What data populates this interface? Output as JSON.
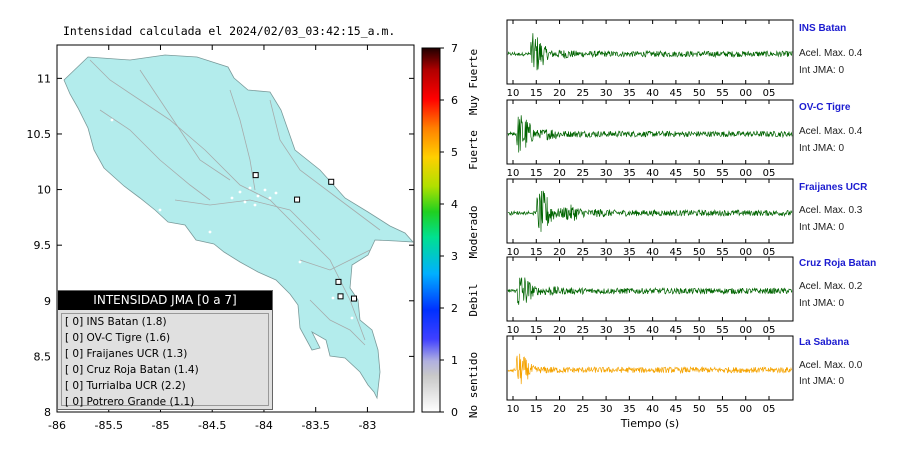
{
  "map": {
    "title": "Intensidad calculada el 2024/02/03_03:42:15_a.m.",
    "xticks": [
      "-86",
      "-85.5",
      "-85",
      "-84.5",
      "-84",
      "-83.5",
      "-83"
    ],
    "yticks": [
      "11",
      "10.5",
      "10",
      "9.5",
      "9",
      "8.5",
      "8"
    ],
    "xlim": [
      -86,
      -82.55
    ],
    "ylim": [
      8,
      11.3
    ],
    "land_color": "#b3ecec",
    "stations": [
      {
        "lon": -84.08,
        "lat": 10.13
      },
      {
        "lon": -83.35,
        "lat": 10.07
      },
      {
        "lon": -83.68,
        "lat": 9.91
      },
      {
        "lon": -83.28,
        "lat": 9.17
      },
      {
        "lon": -83.26,
        "lat": 9.04
      },
      {
        "lon": -83.13,
        "lat": 9.02
      }
    ]
  },
  "legend": {
    "title": "INTENSIDAD JMA [0 a 7]",
    "items": [
      "[ 0]  INS Batan (1.8)",
      "[ 0]  OV-C Tigre (1.6)",
      "[ 0]  Fraijanes UCR (1.3)",
      "[ 0]  Cruz Roja Batan (1.4)",
      "[ 0]  Turrialba UCR (2.2)",
      "[ 0]  Potrero Grande (1.1)"
    ]
  },
  "colorbar": {
    "ticks": [
      "0",
      "1",
      "2",
      "3",
      "4",
      "5",
      "6",
      "7"
    ],
    "labels": [
      "No sentido",
      "Debil",
      "Moderado",
      "Fuerte",
      "Muy Fuerte"
    ]
  },
  "waveforms": {
    "xlabel": "Tiempo (s)",
    "xticks": [
      "10",
      "15",
      "20",
      "25",
      "30",
      "35",
      "40",
      "45",
      "50",
      "55",
      "00",
      "05"
    ],
    "panels": [
      {
        "station": "INS Batan",
        "accel": "Acel. Max. 0.4",
        "int": "Int JMA: 0",
        "color": "#006400",
        "onset": 0.08,
        "amp": 0.95,
        "decay": 0.045
      },
      {
        "station": "OV-C Tigre",
        "accel": "Acel. Max. 0.4",
        "int": "Int JMA: 0",
        "color": "#006400",
        "onset": 0.03,
        "amp": 0.9,
        "decay": 0.06
      },
      {
        "station": "Fraijanes UCR",
        "accel": "Acel. Max. 0.3",
        "int": "Int JMA: 0",
        "color": "#006400",
        "onset": 0.1,
        "amp": 0.9,
        "decay": 0.08
      },
      {
        "station": "Cruz Roja Batan",
        "accel": "Acel. Max. 0.2",
        "int": "Int JMA: 0",
        "color": "#006400",
        "onset": 0.03,
        "amp": 0.85,
        "decay": 0.05
      },
      {
        "station": "La Sabana",
        "accel": "Acel. Max. 0.0",
        "int": "Int JMA: 0",
        "color": "#f5a300",
        "onset": 0.03,
        "amp": 0.8,
        "decay": 0.035
      }
    ]
  }
}
